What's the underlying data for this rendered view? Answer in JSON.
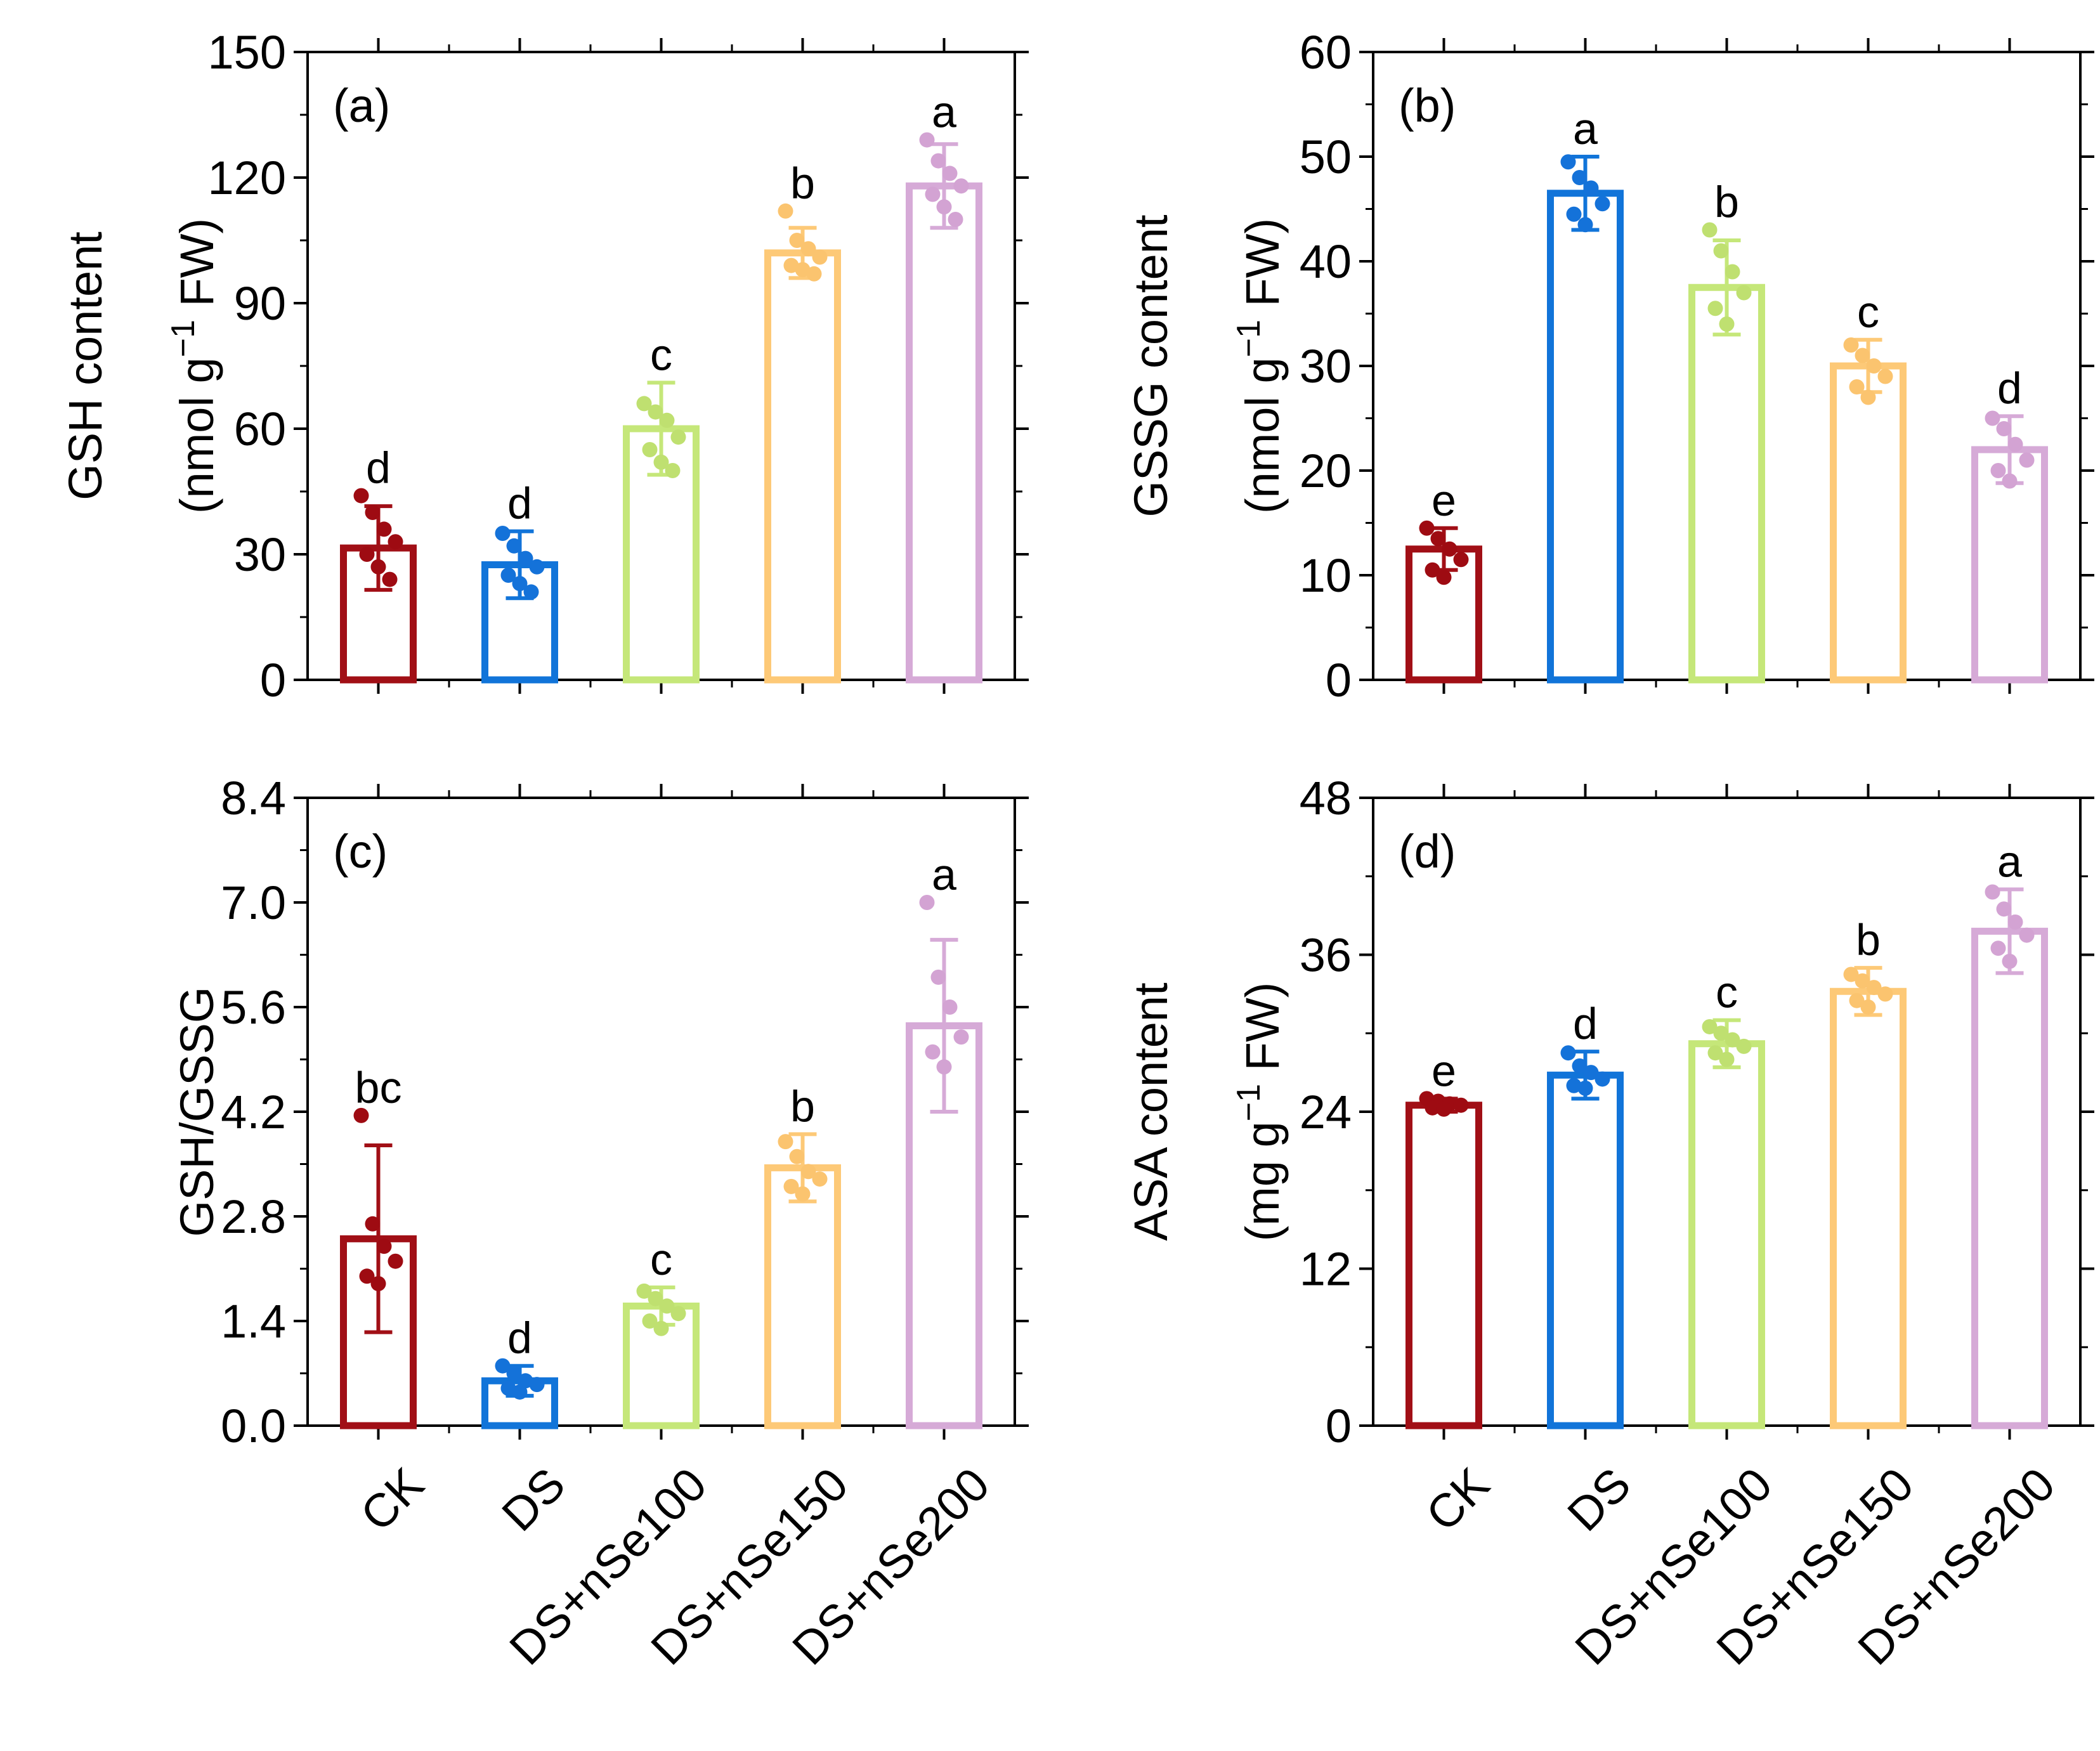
{
  "chart_data": [
    {
      "id": "a",
      "type": "bar",
      "panel_label": "(a)",
      "ylabel_line1": "GSH content",
      "ylabel_line2_prefix": "(nmol g",
      "ylabel_line2_sup": "−1",
      "ylabel_line2_suffix": " FW)",
      "ylim": [
        0,
        150
      ],
      "yticks": [
        0,
        30,
        60,
        90,
        120,
        150
      ],
      "ytick_labels": [
        "0",
        "30",
        "60",
        "90",
        "120",
        "150"
      ],
      "categories": [
        "CK",
        "DS",
        "DS+nSe100",
        "DS+nSe150",
        "DS+nSe200"
      ],
      "values": [
        31.5,
        27.5,
        60,
        102,
        118
      ],
      "errors": [
        10,
        8,
        11,
        6,
        10
      ],
      "letters": [
        "d",
        "d",
        "c",
        "b",
        "a"
      ],
      "points": [
        [
          44,
          40,
          36,
          33,
          30,
          27,
          24
        ],
        [
          35,
          32,
          29,
          27,
          25,
          23,
          21
        ],
        [
          66,
          64,
          62,
          58,
          55,
          52,
          50
        ],
        [
          112,
          105,
          103,
          101,
          99,
          98,
          97
        ],
        [
          129,
          124,
          121,
          118,
          116,
          113,
          110
        ]
      ]
    },
    {
      "id": "b",
      "type": "bar",
      "panel_label": "(b)",
      "ylabel_line1": "GSSG content",
      "ylabel_line2_prefix": "(nmol g",
      "ylabel_line2_sup": "−1",
      "ylabel_line2_suffix": " FW)",
      "ylim": [
        0,
        60
      ],
      "yticks": [
        0,
        10,
        20,
        30,
        40,
        50,
        60
      ],
      "ytick_labels": [
        "0",
        "10",
        "20",
        "30",
        "40",
        "50",
        "60"
      ],
      "categories": [
        "CK",
        "DS",
        "DS+nSe100",
        "DS+nSe150",
        "DS+nSe200"
      ],
      "values": [
        12.5,
        46.5,
        37.5,
        30,
        22
      ],
      "errors": [
        2,
        3.5,
        4.5,
        2.5,
        3.2
      ],
      "letters": [
        "e",
        "a",
        "b",
        "c",
        "d"
      ],
      "points": [
        [
          14.5,
          13.5,
          12.5,
          11.5,
          10.5,
          9.8
        ],
        [
          49.5,
          48,
          47,
          45.5,
          44.5,
          43.5
        ],
        [
          43,
          41,
          39,
          37,
          35.5,
          34
        ],
        [
          32,
          31,
          30,
          29,
          28,
          27
        ],
        [
          25,
          24,
          22.5,
          21,
          20,
          19
        ]
      ]
    },
    {
      "id": "c",
      "type": "bar",
      "panel_label": "(c)",
      "ylabel_line1": "GSH/GSSG",
      "ylim": [
        0,
        8.4
      ],
      "yticks": [
        0,
        1.4,
        2.8,
        4.2,
        5.6,
        7.0,
        8.4
      ],
      "ytick_labels": [
        "0.0",
        "1.4",
        "2.8",
        "4.2",
        "5.6",
        "7.0",
        "8.4"
      ],
      "categories": [
        "CK",
        "DS",
        "DS+nSe100",
        "DS+nSe150",
        "DS+nSe200"
      ],
      "values": [
        2.5,
        0.6,
        1.6,
        3.45,
        5.35
      ],
      "errors": [
        1.25,
        0.2,
        0.25,
        0.45,
        1.15
      ],
      "letters": [
        "bc",
        "d",
        "c",
        "b",
        "a"
      ],
      "points": [
        [
          4.15,
          2.7,
          2.4,
          2.2,
          2.0,
          1.9
        ],
        [
          0.8,
          0.7,
          0.6,
          0.55,
          0.5,
          0.45
        ],
        [
          1.8,
          1.7,
          1.6,
          1.5,
          1.4,
          1.3
        ],
        [
          3.8,
          3.6,
          3.4,
          3.3,
          3.2,
          3.1
        ],
        [
          7.0,
          6.0,
          5.6,
          5.2,
          5.0,
          4.8
        ]
      ]
    },
    {
      "id": "d",
      "type": "bar",
      "panel_label": "(d)",
      "ylabel_line1": "ASA content",
      "ylabel_line2_prefix": "(mg g",
      "ylabel_line2_sup": "−1",
      "ylabel_line2_suffix": " FW)",
      "ylim": [
        0,
        48
      ],
      "yticks": [
        0,
        12,
        24,
        36,
        48
      ],
      "ytick_labels": [
        "0",
        "12",
        "24",
        "36",
        "48"
      ],
      "categories": [
        "CK",
        "DS",
        "DS+nSe100",
        "DS+nSe150",
        "DS+nSe200"
      ],
      "values": [
        24.5,
        26.8,
        29.2,
        33.2,
        37.8
      ],
      "errors": [
        0.5,
        1.8,
        1.8,
        1.8,
        3.2
      ],
      "letters": [
        "e",
        "d",
        "c",
        "b",
        "a"
      ],
      "points": [
        [
          25,
          24.8,
          24.6,
          24.5,
          24.3,
          24.2
        ],
        [
          28.5,
          27.5,
          27,
          26.5,
          26,
          25.8
        ],
        [
          30.5,
          30,
          29.5,
          29,
          28.5,
          28
        ],
        [
          34.5,
          34,
          33.5,
          33,
          32.5,
          32
        ],
        [
          40.8,
          39.5,
          38.5,
          37.5,
          36.5,
          35.5
        ]
      ]
    }
  ],
  "colors": {
    "series": [
      "#a10f16",
      "#1174d9",
      "#c5e779",
      "#fdc977",
      "#d6aad7"
    ],
    "points": [
      "#9e0b12",
      "#1472d9",
      "#bfe070",
      "#fbc46f",
      "#d3a3d3"
    ]
  }
}
